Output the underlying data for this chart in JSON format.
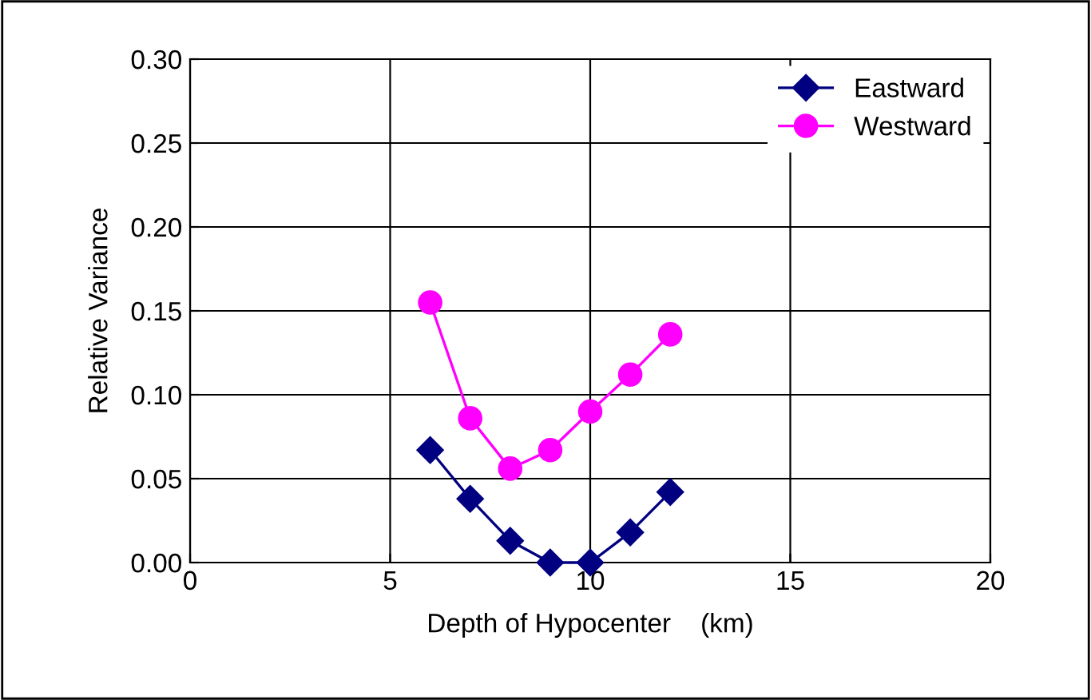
{
  "chart_data": {
    "type": "line",
    "xlabel": "Depth of Hypocenter    (km)",
    "ylabel": "Relative Variance",
    "x": [
      6,
      7,
      8,
      9,
      10,
      11,
      12
    ],
    "series": [
      {
        "name": "Eastward",
        "color": "#000080",
        "marker": "diamond",
        "values": [
          0.067,
          0.038,
          0.013,
          0.0,
          0.0,
          0.018,
          0.042
        ]
      },
      {
        "name": "Westward",
        "color": "#ff00ff",
        "marker": "circle",
        "values": [
          0.155,
          0.086,
          0.056,
          0.067,
          0.09,
          0.112,
          0.136
        ]
      }
    ],
    "xlim": [
      0,
      20
    ],
    "xticks": [
      0,
      5,
      10,
      15,
      20
    ],
    "ylim": [
      0,
      0.3
    ],
    "yticks": [
      {
        "value": 0,
        "label": "0.00"
      },
      {
        "value": 0.05,
        "label": "0.05"
      },
      {
        "value": 0.1,
        "label": "0.10"
      },
      {
        "value": 0.15,
        "label": "0.15"
      },
      {
        "value": 0.2,
        "label": "0.20"
      },
      {
        "value": 0.25,
        "label": "0.25"
      },
      {
        "value": 0.3,
        "label": "0.30"
      }
    ],
    "grid": true,
    "legend": "top right",
    "line_style": "solid"
  }
}
